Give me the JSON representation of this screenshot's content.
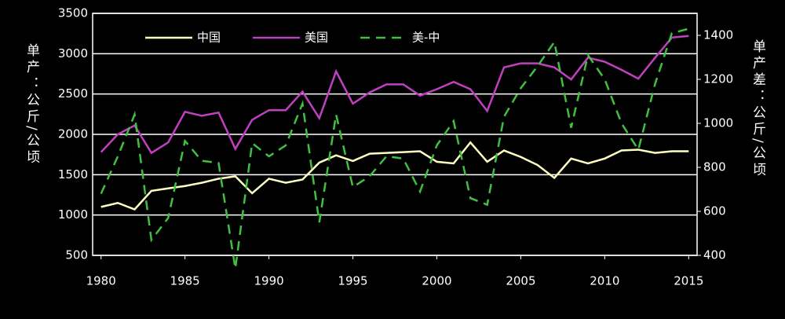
{
  "chart_data": {
    "type": "line",
    "y_label": "单产：公斤/公顷",
    "y2_label": "单产差：公斤/公顷",
    "x": [
      1980,
      1981,
      1982,
      1983,
      1984,
      1985,
      1986,
      1987,
      1988,
      1989,
      1990,
      1991,
      1992,
      1993,
      1994,
      1995,
      1996,
      1997,
      1998,
      1999,
      2000,
      2001,
      2002,
      2003,
      2004,
      2005,
      2006,
      2007,
      2008,
      2009,
      2010,
      2011,
      2012,
      2013,
      2014,
      2015
    ],
    "series": [
      {
        "name": "中国",
        "color": "#ffffc0",
        "dash": false,
        "values": [
          1100,
          1150,
          1070,
          1300,
          1330,
          1360,
          1400,
          1450,
          1480,
          1270,
          1450,
          1400,
          1440,
          1650,
          1740,
          1670,
          1760,
          1770,
          1780,
          1790,
          1660,
          1640,
          1900,
          1660,
          1800,
          1720,
          1620,
          1460,
          1700,
          1640,
          1700,
          1800,
          1810,
          1770,
          1790,
          1790
        ]
      },
      {
        "name": "美国",
        "color": "#c040c0",
        "dash": false,
        "values": [
          1780,
          2000,
          2110,
          1770,
          1900,
          2280,
          2230,
          2270,
          1820,
          2180,
          2300,
          2300,
          2530,
          2200,
          2780,
          2380,
          2520,
          2620,
          2620,
          2480,
          2560,
          2650,
          2560,
          2290,
          2830,
          2880,
          2880,
          2830,
          2680,
          2950,
          2900,
          2800,
          2690,
          2950,
          3200,
          3220
        ]
      },
      {
        "name": "美-中",
        "color": "#40c040",
        "dash": true,
        "axis": "y2",
        "values": [
          680,
          850,
          1040,
          470,
          570,
          920,
          830,
          820,
          340,
          910,
          850,
          900,
          1090,
          550,
          1040,
          710,
          760,
          850,
          840,
          690,
          900,
          1010,
          660,
          630,
          1030,
          1160,
          1260,
          1370,
          980,
          1310,
          1200,
          1000,
          880,
          1180,
          1410,
          1430
        ]
      }
    ],
    "xlim": [
      1979.5,
      2015.5
    ],
    "xticks": [
      1980,
      1985,
      1990,
      1995,
      2000,
      2005,
      2010,
      2015
    ],
    "ylim": [
      500,
      3500
    ],
    "yticks": [
      500,
      1000,
      1500,
      2000,
      2500,
      3000,
      3500
    ],
    "y2lim": [
      400,
      1500
    ],
    "y2ticks": [
      400,
      600,
      800,
      1000,
      1200,
      1400
    ],
    "grid": true
  }
}
